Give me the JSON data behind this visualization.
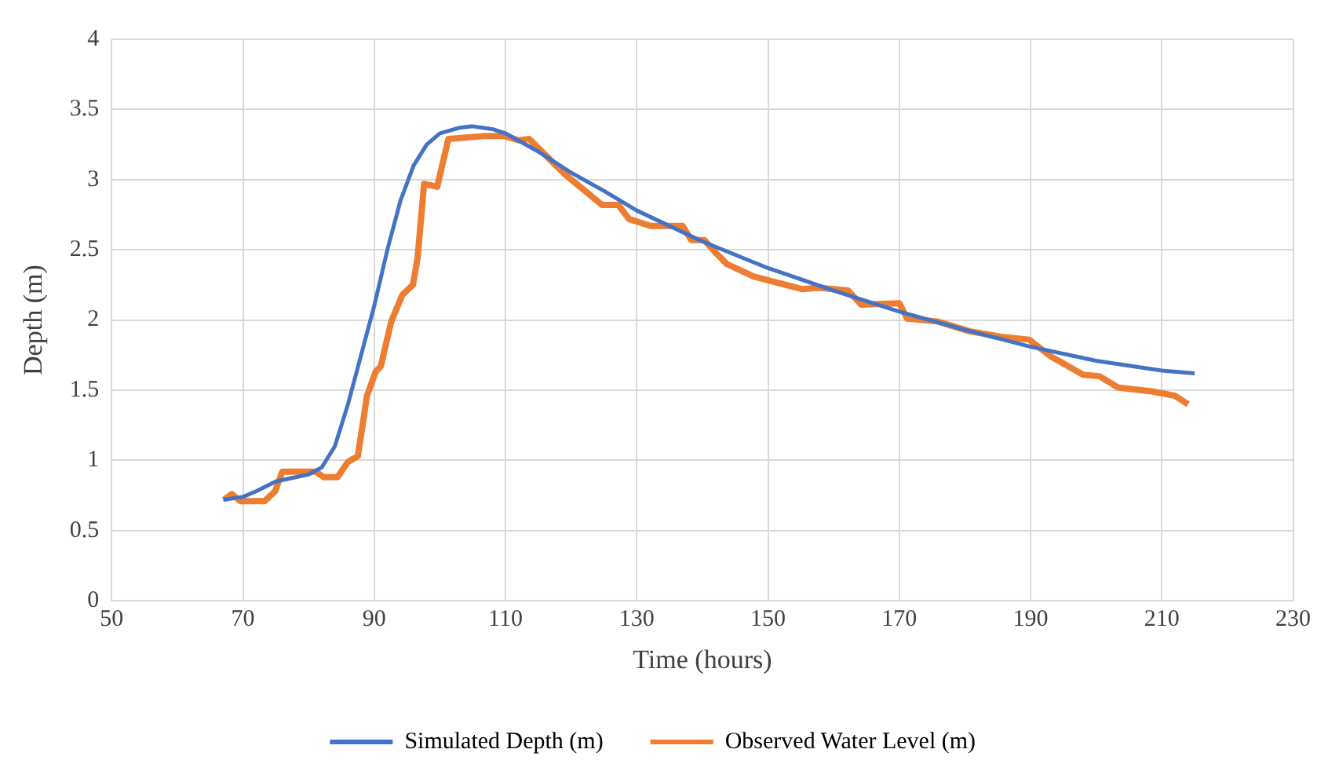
{
  "chart_data": {
    "type": "line",
    "xlabel": "Time (hours)",
    "ylabel": "Depth (m)",
    "xlim": [
      50,
      230
    ],
    "xticks": [
      50,
      70,
      90,
      110,
      130,
      150,
      170,
      190,
      210,
      230
    ],
    "ylim": [
      0,
      4
    ],
    "yticks": [
      0,
      0.5,
      1,
      1.5,
      2,
      2.5,
      3,
      3.5,
      4
    ],
    "grid": true,
    "legend": "bottom",
    "marker": "none",
    "line_style": "solid",
    "series": [
      {
        "name": "Simulated Depth (m)",
        "color": "#4472c4",
        "x": [
          67,
          70,
          72,
          75,
          80,
          82,
          84,
          86,
          88,
          90,
          92,
          94,
          96,
          98,
          100,
          103,
          105,
          108,
          110,
          115,
          120,
          125,
          130,
          140,
          150,
          160,
          170,
          180,
          190,
          200,
          210,
          215
        ],
        "values": [
          0.72,
          0.74,
          0.78,
          0.85,
          0.9,
          0.95,
          1.1,
          1.4,
          1.75,
          2.1,
          2.5,
          2.85,
          3.1,
          3.25,
          3.33,
          3.37,
          3.38,
          3.36,
          3.33,
          3.2,
          3.05,
          2.92,
          2.78,
          2.56,
          2.37,
          2.21,
          2.06,
          1.93,
          1.81,
          1.71,
          1.64,
          1.62
        ]
      },
      {
        "name": "Observed Water Level (m)",
        "color": "#ed7d31",
        "x": [
          67.1,
          68.3,
          69.6,
          73.3,
          74.9,
          76,
          81.1,
          82.3,
          84.4,
          86,
          87.5,
          88.9,
          90.2,
          91,
          92.6,
          94.3,
          95.9,
          96.6,
          97.6,
          99.6,
          101.3,
          106.6,
          109.9,
          112,
          113.6,
          119,
          124.7,
          127.2,
          128.8,
          132.1,
          137,
          138.3,
          140.3,
          141.6,
          143.7,
          147.8,
          151.1,
          155.2,
          157.7,
          162.2,
          164.2,
          170,
          171.2,
          175.8,
          180.7,
          185.6,
          189.8,
          193.1,
          198,
          200.5,
          203.3,
          208.7,
          212,
          214
        ],
        "values": [
          0.72,
          0.76,
          0.71,
          0.71,
          0.78,
          0.92,
          0.92,
          0.88,
          0.88,
          0.99,
          1.03,
          1.46,
          1.63,
          1.67,
          1.99,
          2.18,
          2.25,
          2.44,
          2.97,
          2.95,
          3.29,
          3.31,
          3.31,
          3.28,
          3.29,
          3.04,
          2.82,
          2.82,
          2.72,
          2.67,
          2.67,
          2.57,
          2.57,
          2.5,
          2.4,
          2.31,
          2.27,
          2.22,
          2.23,
          2.21,
          2.11,
          2.12,
          2.01,
          1.99,
          1.92,
          1.88,
          1.86,
          1.74,
          1.61,
          1.6,
          1.52,
          1.49,
          1.46,
          1.4
        ]
      }
    ]
  }
}
